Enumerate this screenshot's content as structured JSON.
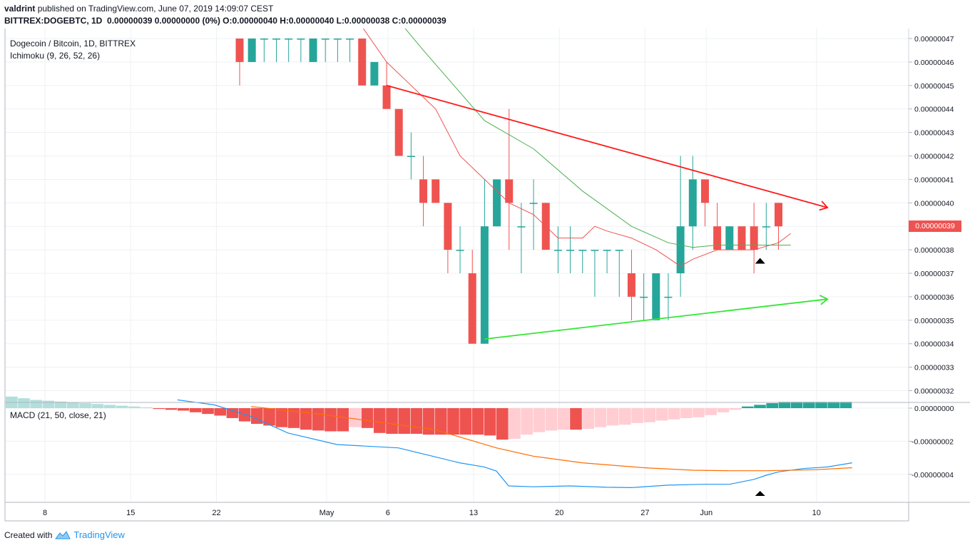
{
  "header": {
    "author": "valdrint",
    "published": "published on TradingView.com, June 07, 2019 14:09:07 CEST",
    "symbol": "BITTREX:DOGEBTC, 1D",
    "ohlc": "0.00000039 0.00000000 (0%) O:0.00000040 H:0.00000040 L:0.00000038 C:0.00000039"
  },
  "pane": {
    "title": "Dogecoin / Bitcoin, 1D, BITTREX",
    "indicator": "Ichimoku (9, 26, 52, 26)",
    "macd_label": "MACD (21, 50, close, 21)",
    "last_price": "0.00000039"
  },
  "footer": {
    "created_with": "Created with",
    "brand": "TradingView",
    "logo_icon": "tradingview-logo-icon"
  },
  "colors": {
    "up": "#26a69a",
    "down": "#ef5350",
    "resistance": "#ff1a1a",
    "support": "#33e633",
    "tenkan": "#ef5350",
    "kijun": "#4caf50",
    "macd": "#2196f3",
    "signal": "#ff6d00",
    "hist_neg_strong": "#ef5350",
    "hist_neg_weak": "#ffcdd2",
    "hist_pos": "#26a69a",
    "hist_pos_weak": "#b2dfdb"
  },
  "chart_data": [
    {
      "type": "candlestick",
      "title": "Dogecoin / Bitcoin, 1D, BITTREX",
      "y_unit": "BTC",
      "y_ticks": [
        "0.00000047",
        "0.00000046",
        "0.00000045",
        "0.00000044",
        "0.00000043",
        "0.00000042",
        "0.00000041",
        "0.00000040",
        "0.00000039",
        "0.00000038",
        "0.00000037",
        "0.00000036",
        "0.00000035",
        "0.00000034",
        "0.00000033",
        "0.00000032"
      ],
      "x_ticks": [
        "8",
        "15",
        "22",
        "May",
        "6",
        "13",
        "20",
        "27",
        "Jun",
        "10"
      ],
      "ylim": [
        3.16e-07,
        4.735e-07
      ],
      "candles": [
        {
          "date": "2019-04-24",
          "o": 47,
          "h": 47,
          "l": 45,
          "c": 46
        },
        {
          "date": "2019-04-25",
          "o": 46,
          "h": 47,
          "l": 46,
          "c": 47
        },
        {
          "date": "2019-04-26",
          "o": 47,
          "h": 47,
          "l": 46,
          "c": 47
        },
        {
          "date": "2019-04-27",
          "o": 47,
          "h": 47,
          "l": 46,
          "c": 47
        },
        {
          "date": "2019-04-28",
          "o": 47,
          "h": 47,
          "l": 46,
          "c": 47
        },
        {
          "date": "2019-04-29",
          "o": 47,
          "h": 47,
          "l": 46,
          "c": 47
        },
        {
          "date": "2019-04-30",
          "o": 46,
          "h": 47,
          "l": 46,
          "c": 47
        },
        {
          "date": "2019-05-01",
          "o": 47,
          "h": 47,
          "l": 46,
          "c": 47
        },
        {
          "date": "2019-05-02",
          "o": 47,
          "h": 47,
          "l": 46,
          "c": 47
        },
        {
          "date": "2019-05-03",
          "o": 47,
          "h": 47,
          "l": 46,
          "c": 47
        },
        {
          "date": "2019-05-04",
          "o": 47,
          "h": 47,
          "l": 45,
          "c": 45
        },
        {
          "date": "2019-05-05",
          "o": 45,
          "h": 46,
          "l": 45,
          "c": 46
        },
        {
          "date": "2019-05-06",
          "o": 45,
          "h": 46,
          "l": 44,
          "c": 44
        },
        {
          "date": "2019-05-07",
          "o": 44,
          "h": 44,
          "l": 42,
          "c": 42
        },
        {
          "date": "2019-05-08",
          "o": 42,
          "h": 43,
          "l": 41,
          "c": 42
        },
        {
          "date": "2019-05-09",
          "o": 41,
          "h": 42,
          "l": 39,
          "c": 40
        },
        {
          "date": "2019-05-10",
          "o": 41,
          "h": 41,
          "l": 40,
          "c": 40
        },
        {
          "date": "2019-05-11",
          "o": 40,
          "h": 40,
          "l": 37,
          "c": 38
        },
        {
          "date": "2019-05-12",
          "o": 38,
          "h": 39,
          "l": 37,
          "c": 38
        },
        {
          "date": "2019-05-13",
          "o": 37,
          "h": 38,
          "l": 34,
          "c": 34
        },
        {
          "date": "2019-05-14",
          "o": 34,
          "h": 41,
          "l": 34,
          "c": 39
        },
        {
          "date": "2019-05-15",
          "o": 39,
          "h": 41,
          "l": 39,
          "c": 41
        },
        {
          "date": "2019-05-16",
          "o": 41,
          "h": 44,
          "l": 38,
          "c": 40
        },
        {
          "date": "2019-05-17",
          "o": 39,
          "h": 40,
          "l": 37,
          "c": 39
        },
        {
          "date": "2019-05-18",
          "o": 40,
          "h": 41,
          "l": 38,
          "c": 40
        },
        {
          "date": "2019-05-19",
          "o": 40,
          "h": 40,
          "l": 38,
          "c": 38
        },
        {
          "date": "2019-05-20",
          "o": 38,
          "h": 39,
          "l": 37,
          "c": 38
        },
        {
          "date": "2019-05-21",
          "o": 38,
          "h": 39,
          "l": 37,
          "c": 38
        },
        {
          "date": "2019-05-22",
          "o": 38,
          "h": 38,
          "l": 37,
          "c": 38
        },
        {
          "date": "2019-05-23",
          "o": 38,
          "h": 38,
          "l": 36,
          "c": 38
        },
        {
          "date": "2019-05-24",
          "o": 38,
          "h": 38,
          "l": 37,
          "c": 38
        },
        {
          "date": "2019-05-25",
          "o": 38,
          "h": 38,
          "l": 36,
          "c": 38
        },
        {
          "date": "2019-05-26",
          "o": 37,
          "h": 38,
          "l": 35,
          "c": 36
        },
        {
          "date": "2019-05-27",
          "o": 36,
          "h": 37,
          "l": 35,
          "c": 36
        },
        {
          "date": "2019-05-28",
          "o": 35,
          "h": 37,
          "l": 35,
          "c": 37
        },
        {
          "date": "2019-05-29",
          "o": 36,
          "h": 37,
          "l": 35,
          "c": 36
        },
        {
          "date": "2019-05-30",
          "o": 37,
          "h": 42,
          "l": 36,
          "c": 39
        },
        {
          "date": "2019-05-31",
          "o": 39,
          "h": 42,
          "l": 38,
          "c": 41
        },
        {
          "date": "2019-06-01",
          "o": 41,
          "h": 41,
          "l": 39,
          "c": 40
        },
        {
          "date": "2019-06-02",
          "o": 39,
          "h": 40,
          "l": 38,
          "c": 38
        },
        {
          "date": "2019-06-03",
          "o": 38,
          "h": 39,
          "l": 38,
          "c": 39
        },
        {
          "date": "2019-06-04",
          "o": 39,
          "h": 39,
          "l": 38,
          "c": 38
        },
        {
          "date": "2019-06-05",
          "o": 39,
          "h": 40,
          "l": 37,
          "c": 38
        },
        {
          "date": "2019-06-06",
          "o": 39,
          "h": 40,
          "l": 38,
          "c": 39
        },
        {
          "date": "2019-06-07",
          "o": 40,
          "h": 40,
          "l": 38,
          "c": 39
        }
      ],
      "tenkan": [
        [
          8,
          48
        ],
        [
          10,
          47.5
        ],
        [
          12,
          46
        ],
        [
          14,
          45
        ],
        [
          16,
          44
        ],
        [
          18,
          42
        ],
        [
          20,
          41
        ],
        [
          22,
          40
        ],
        [
          24,
          39.5
        ],
        [
          26,
          38.5
        ],
        [
          28,
          38.5
        ],
        [
          29,
          39
        ],
        [
          30,
          38.8
        ],
        [
          32,
          38.5
        ],
        [
          34,
          38
        ],
        [
          36,
          37.3
        ],
        [
          37,
          37.6
        ],
        [
          39,
          38
        ],
        [
          42,
          38
        ],
        [
          44,
          38.3
        ],
        [
          45,
          38.7
        ]
      ],
      "kijun": [
        [
          11,
          49
        ],
        [
          15,
          46.5
        ],
        [
          20,
          43.5
        ],
        [
          24,
          42.3
        ],
        [
          28,
          40.5
        ],
        [
          32,
          39
        ],
        [
          35,
          38.3
        ],
        [
          37,
          38.1
        ],
        [
          39,
          38.2
        ],
        [
          42,
          38.2
        ],
        [
          45,
          38.2
        ]
      ],
      "resistance_line": {
        "from": [
          12,
          45
        ],
        "to": [
          48,
          39.8
        ]
      },
      "support_line": {
        "from": [
          20,
          34.2
        ],
        "to": [
          48,
          35.9
        ]
      },
      "markers": [
        42.5
      ]
    },
    {
      "type": "macd",
      "title": "MACD (21, 50, close, 21)",
      "y_ticks": [
        "0.00000000",
        "-0.00000002",
        "-0.00000004"
      ],
      "histogram": [
        0.7,
        0.6,
        0.5,
        0.45,
        0.4,
        0.35,
        0.3,
        0.25,
        0.2,
        0.15,
        0.1,
        0.05,
        -0.05,
        -0.1,
        -0.15,
        -0.25,
        -0.35,
        -0.45,
        -0.6,
        -0.8,
        -0.95,
        -1.05,
        -1.15,
        -1.2,
        -1.3,
        -1.35,
        -1.4,
        -1.4,
        -1.15,
        -1.2,
        -1.5,
        -1.55,
        -1.55,
        -1.55,
        -1.6,
        -1.6,
        -1.6,
        -1.6,
        -1.6,
        -1.65,
        -1.9,
        -1.85,
        -1.6,
        -1.45,
        -1.35,
        -1.3,
        -1.3,
        -1.25,
        -1.15,
        -1.05,
        -1.0,
        -0.9,
        -0.85,
        -0.75,
        -0.68,
        -0.6,
        -0.55,
        -0.42,
        -0.25,
        -0.1,
        0.1,
        0.2,
        0.3,
        0.38,
        0.38,
        0.38,
        0.38,
        0.38,
        0.38
      ],
      "macd_line": [
        [
          14,
          0.5
        ],
        [
          17,
          0.2
        ],
        [
          20,
          -0.5
        ],
        [
          23,
          -1.5
        ],
        [
          27,
          -2.2
        ],
        [
          32,
          -2.4
        ],
        [
          37,
          -3.3
        ],
        [
          39,
          -3.55
        ],
        [
          40,
          -3.8
        ],
        [
          41,
          -4.7
        ],
        [
          43,
          -4.75
        ],
        [
          46,
          -4.7
        ],
        [
          49,
          -4.78
        ],
        [
          51,
          -4.8
        ],
        [
          54,
          -4.65
        ],
        [
          57,
          -4.6
        ],
        [
          59,
          -4.6
        ],
        [
          61,
          -4.3
        ],
        [
          62,
          -4.05
        ],
        [
          63,
          -3.85
        ],
        [
          65,
          -3.65
        ],
        [
          67,
          -3.55
        ],
        [
          69,
          -3.3
        ]
      ],
      "signal_line": [
        [
          20,
          0.1
        ],
        [
          25,
          -0.3
        ],
        [
          30,
          -0.8
        ],
        [
          35,
          -1.3
        ],
        [
          40,
          -2.4
        ],
        [
          43,
          -2.9
        ],
        [
          47,
          -3.3
        ],
        [
          52,
          -3.6
        ],
        [
          56,
          -3.75
        ],
        [
          59,
          -3.78
        ],
        [
          62,
          -3.78
        ],
        [
          66,
          -3.72
        ],
        [
          69,
          -3.6
        ]
      ],
      "marker": 42.5
    }
  ]
}
